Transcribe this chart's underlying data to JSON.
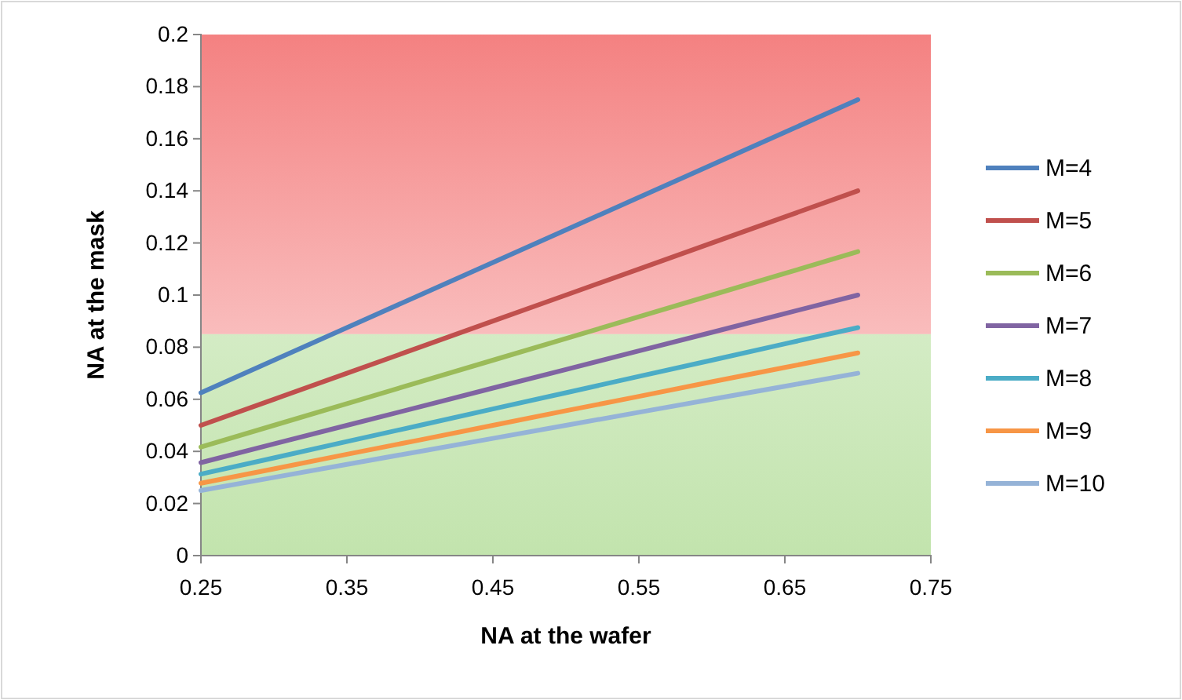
{
  "chart_data": {
    "type": "line",
    "xlabel": "NA at the wafer",
    "ylabel": "NA at the mask",
    "x": [
      0.25,
      0.3,
      0.35,
      0.4,
      0.45,
      0.5,
      0.55,
      0.6,
      0.65,
      0.7
    ],
    "series": [
      {
        "name": "M=4",
        "color": "#4f81bd",
        "values": [
          0.0625,
          0.075,
          0.0875,
          0.1,
          0.1125,
          0.125,
          0.1375,
          0.15,
          0.1625,
          0.175
        ]
      },
      {
        "name": "M=5",
        "color": "#c0504d",
        "values": [
          0.05,
          0.06,
          0.07,
          0.08,
          0.09,
          0.1,
          0.11,
          0.12,
          0.13,
          0.14
        ]
      },
      {
        "name": "M=6",
        "color": "#9bbb59",
        "values": [
          0.0417,
          0.05,
          0.0583,
          0.0667,
          0.075,
          0.0833,
          0.0917,
          0.1,
          0.1083,
          0.1167
        ]
      },
      {
        "name": "M=7",
        "color": "#8064a2",
        "values": [
          0.0357,
          0.0429,
          0.05,
          0.0571,
          0.0643,
          0.0714,
          0.0786,
          0.0857,
          0.0929,
          0.1
        ]
      },
      {
        "name": "M=8",
        "color": "#4bacc6",
        "values": [
          0.0313,
          0.0375,
          0.0438,
          0.05,
          0.0563,
          0.0625,
          0.0688,
          0.075,
          0.0813,
          0.0875
        ]
      },
      {
        "name": "M=9",
        "color": "#f79646",
        "values": [
          0.0278,
          0.0333,
          0.0389,
          0.0444,
          0.05,
          0.0556,
          0.0611,
          0.0667,
          0.0722,
          0.0778
        ]
      },
      {
        "name": "M=10",
        "color": "#95b3d7",
        "values": [
          0.025,
          0.03,
          0.035,
          0.04,
          0.045,
          0.05,
          0.055,
          0.06,
          0.065,
          0.07
        ]
      }
    ],
    "xlim": [
      0.25,
      0.75
    ],
    "xticks": [
      0.25,
      0.35,
      0.45,
      0.55,
      0.65,
      0.75
    ],
    "ylim": [
      0,
      0.2
    ],
    "yticks": [
      0,
      0.02,
      0.04,
      0.06,
      0.08,
      0.1,
      0.12,
      0.14,
      0.16,
      0.18,
      0.2
    ],
    "bands": [
      {
        "axis": "y",
        "from": 0.085,
        "to": 0.2,
        "color": "#f26b6b"
      },
      {
        "axis": "y",
        "from": 0,
        "to": 0.085,
        "color": "#a8d88a"
      }
    ],
    "grid": false,
    "legend": "right",
    "marker": "none",
    "line_style": "solid"
  }
}
